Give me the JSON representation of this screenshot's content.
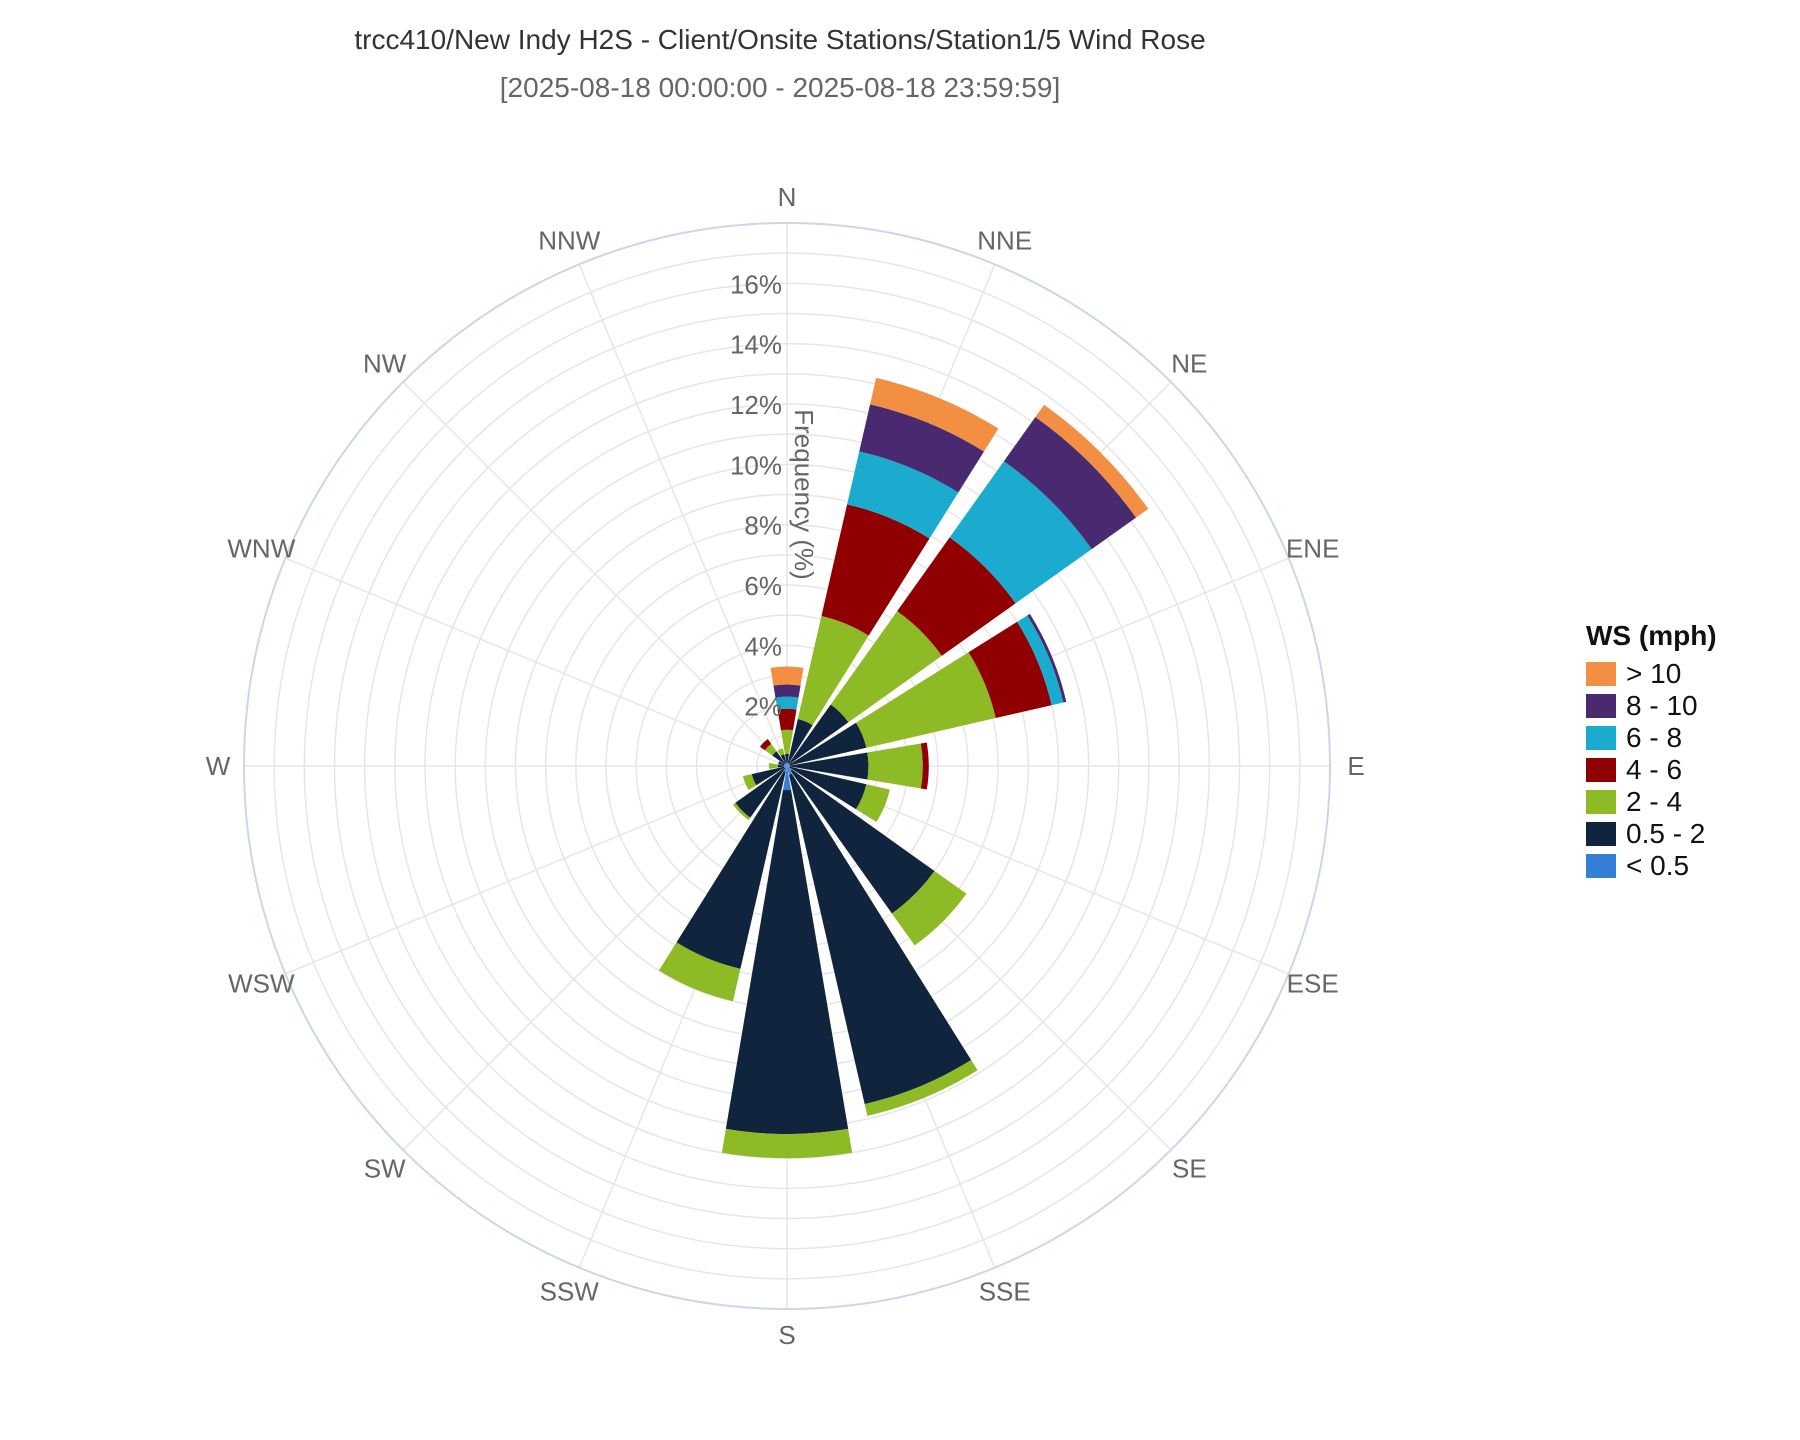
{
  "chart_data": {
    "type": "windrose",
    "title": "trcc410/New Indy H2S - Client/Onsite Stations/Station1/5 Wind Rose",
    "subtitle": "[2025-08-18 00:00:00 - 2025-08-18 23:59:59]",
    "radial_axis_label": "Frequency (%)",
    "radial_ticks": [
      "2%",
      "4%",
      "6%",
      "8%",
      "10%",
      "12%",
      "14%",
      "16%"
    ],
    "radial_tick_values": [
      2,
      4,
      6,
      8,
      10,
      12,
      14,
      16
    ],
    "radial_max": 18,
    "directions": [
      "N",
      "NNE",
      "NE",
      "ENE",
      "E",
      "ESE",
      "SE",
      "SSE",
      "S",
      "SSW",
      "SW",
      "WSW",
      "W",
      "WNW",
      "NW",
      "NNW"
    ],
    "legend": {
      "title": "WS (mph)",
      "placement": "right",
      "entries": [
        "> 10",
        "8 - 10",
        "6 - 8",
        "4 - 6",
        "2 - 4",
        "0.5 - 2",
        "< 0.5"
      ]
    },
    "series": [
      {
        "name": "< 0.5",
        "color": "#3580d6",
        "values": [
          0.1,
          0.1,
          0.1,
          0.1,
          0.1,
          0.1,
          0.2,
          0.3,
          0.8,
          0.2,
          0.1,
          0.1,
          0.1,
          0.1,
          0.1,
          0.1
        ]
      },
      {
        "name": "0.5 - 2",
        "color": "#10243d",
        "values": [
          0.3,
          1.5,
          2.4,
          2.6,
          2.6,
          2.6,
          5.8,
          11.2,
          11.4,
          6.7,
          2.0,
          1.1,
          0.2,
          0.2,
          0.5,
          0.3
        ]
      },
      {
        "name": "2 - 4",
        "color": "#8dba25",
        "values": [
          0.8,
          3.5,
          3.8,
          4.4,
          1.8,
          0.8,
          1.3,
          0.4,
          0.8,
          1.1,
          0.1,
          0.3,
          0.3,
          0.0,
          0.3,
          0.2
        ]
      },
      {
        "name": "4 - 6",
        "color": "#910000",
        "values": [
          0.7,
          3.8,
          3.0,
          1.9,
          0.2,
          0.0,
          0.0,
          0.0,
          0.0,
          0.0,
          0.0,
          0.0,
          0.0,
          0.0,
          0.2,
          0.0
        ]
      },
      {
        "name": "6 - 8",
        "color": "#1aabce",
        "values": [
          0.4,
          1.8,
          3.1,
          0.4,
          0.0,
          0.0,
          0.0,
          0.0,
          0.0,
          0.0,
          0.0,
          0.0,
          0.0,
          0.0,
          0.0,
          0.0
        ]
      },
      {
        "name": "8 - 10",
        "color": "#492970",
        "values": [
          0.4,
          1.6,
          1.8,
          0.1,
          0.0,
          0.0,
          0.0,
          0.0,
          0.0,
          0.0,
          0.0,
          0.0,
          0.0,
          0.0,
          0.0,
          0.0
        ]
      },
      {
        "name": "> 10",
        "color": "#f28f43",
        "values": [
          0.6,
          0.9,
          0.5,
          0.0,
          0.0,
          0.0,
          0.0,
          0.0,
          0.0,
          0.0,
          0.0,
          0.0,
          0.0,
          0.0,
          0.0,
          0.0
        ]
      }
    ]
  }
}
